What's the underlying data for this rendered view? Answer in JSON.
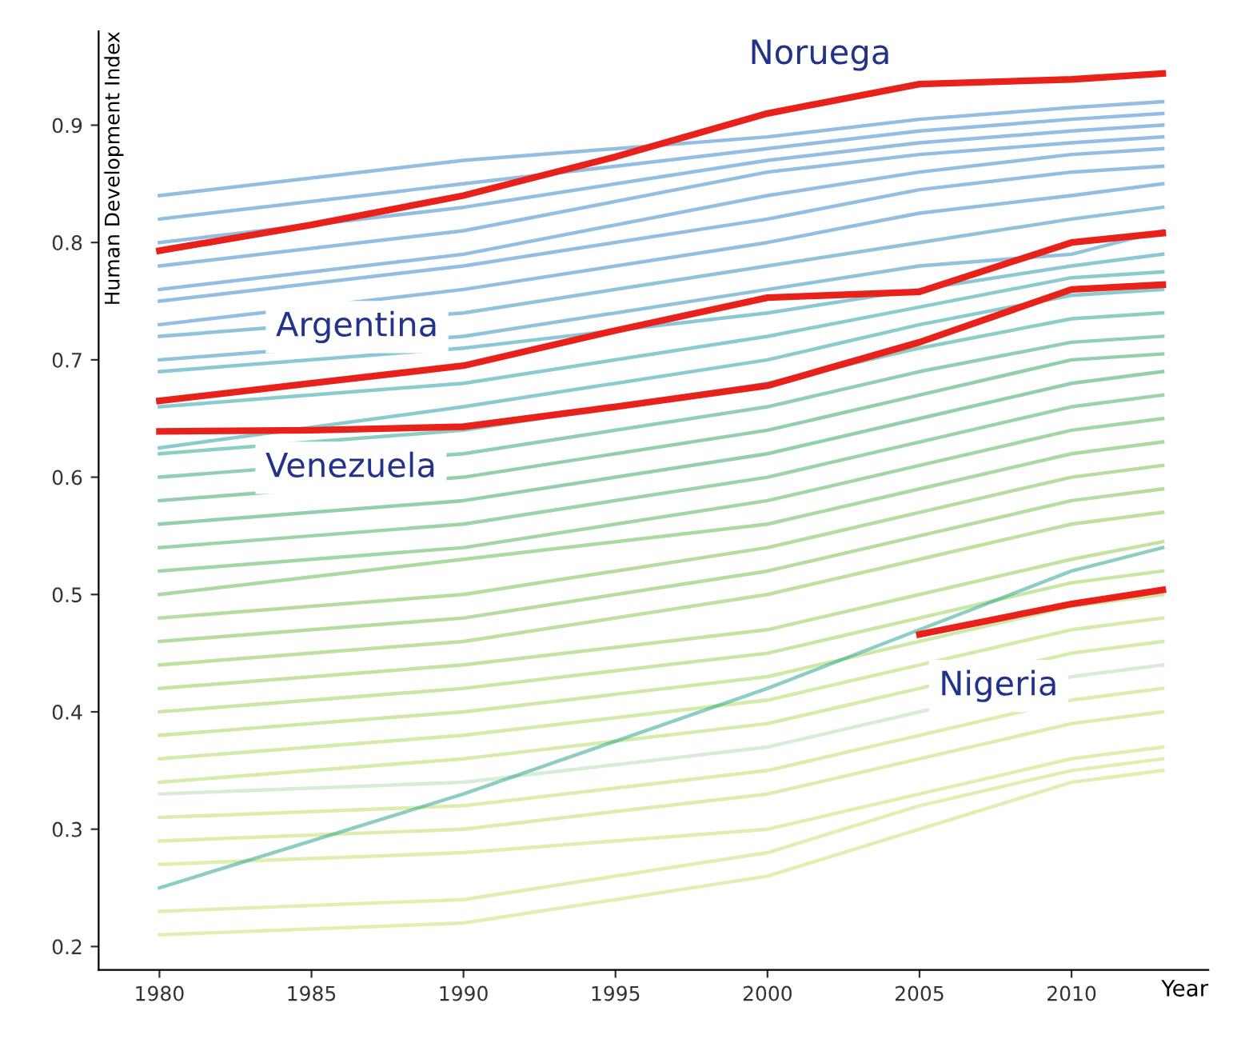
{
  "chart_data": {
    "type": "line",
    "xlabel": "Year",
    "ylabel": "Human Development Index",
    "xlim": [
      1978,
      2014.5
    ],
    "ylim": [
      0.18,
      0.98
    ],
    "xticks": [
      1980,
      1985,
      1990,
      1995,
      2000,
      2005,
      2010
    ],
    "yticks": [
      0.2,
      0.3,
      0.4,
      0.5,
      0.6,
      0.7,
      0.8,
      0.9
    ],
    "grid": false,
    "legend": false,
    "marker": "none",
    "line_style": "solid",
    "x": [
      1980,
      1990,
      2000,
      2005,
      2010,
      2013
    ],
    "series": [
      {
        "color": "#3a87c8",
        "values": [
          0.84,
          0.87,
          0.89,
          0.905,
          0.915,
          0.92
        ]
      },
      {
        "color": "#3a87c8",
        "values": [
          0.82,
          0.85,
          0.88,
          0.895,
          0.905,
          0.91
        ]
      },
      {
        "color": "#3a87c8",
        "values": [
          0.8,
          0.83,
          0.87,
          0.885,
          0.895,
          0.9
        ]
      },
      {
        "color": "#3a87c8",
        "values": [
          0.78,
          0.81,
          0.86,
          0.875,
          0.885,
          0.89
        ]
      },
      {
        "color": "#3a87c8",
        "values": [
          0.76,
          0.79,
          0.84,
          0.86,
          0.875,
          0.88
        ]
      },
      {
        "color": "#3a87c8",
        "values": [
          0.75,
          0.78,
          0.82,
          0.845,
          0.86,
          0.865
        ]
      },
      {
        "color": "#3a87c8",
        "values": [
          0.73,
          0.76,
          0.8,
          0.825,
          0.84,
          0.85
        ]
      },
      {
        "color": "#3590c0",
        "values": [
          0.72,
          0.74,
          0.78,
          0.8,
          0.82,
          0.83
        ]
      },
      {
        "color": "#3590c0",
        "values": [
          0.7,
          0.72,
          0.76,
          0.78,
          0.79,
          0.81
        ]
      },
      {
        "color": "#2c9ab0",
        "values": [
          0.69,
          0.71,
          0.74,
          0.76,
          0.78,
          0.79
        ]
      },
      {
        "color": "#2aa0a8",
        "values": [
          0.66,
          0.68,
          0.72,
          0.745,
          0.77,
          0.775
        ]
      },
      {
        "color": "#2aa0a8",
        "values": [
          0.625,
          0.66,
          0.7,
          0.73,
          0.755,
          0.76
        ]
      },
      {
        "color": "#2ea690",
        "values": [
          0.62,
          0.64,
          0.68,
          0.71,
          0.735,
          0.74
        ]
      },
      {
        "color": "#34a878",
        "values": [
          0.6,
          0.62,
          0.66,
          0.69,
          0.715,
          0.72
        ]
      },
      {
        "color": "#3aa86a",
        "values": [
          0.58,
          0.6,
          0.64,
          0.67,
          0.7,
          0.705
        ]
      },
      {
        "color": "#3aa86a",
        "values": [
          0.56,
          0.58,
          0.62,
          0.65,
          0.68,
          0.69
        ]
      },
      {
        "color": "#4aae62",
        "values": [
          0.54,
          0.56,
          0.6,
          0.63,
          0.66,
          0.67
        ]
      },
      {
        "color": "#55b45c",
        "values": [
          0.52,
          0.54,
          0.58,
          0.61,
          0.64,
          0.65
        ]
      },
      {
        "color": "#66ba56",
        "values": [
          0.5,
          0.53,
          0.56,
          0.59,
          0.62,
          0.63
        ]
      },
      {
        "color": "#7cc050",
        "values": [
          0.48,
          0.5,
          0.54,
          0.57,
          0.6,
          0.61
        ]
      },
      {
        "color": "#7cc050",
        "values": [
          0.46,
          0.48,
          0.52,
          0.55,
          0.58,
          0.59
        ]
      },
      {
        "color": "#88c652",
        "values": [
          0.44,
          0.46,
          0.5,
          0.53,
          0.56,
          0.57
        ]
      },
      {
        "color": "#94cc56",
        "values": [
          0.42,
          0.44,
          0.47,
          0.5,
          0.53,
          0.545
        ]
      },
      {
        "color": "#9ed25a",
        "values": [
          0.4,
          0.42,
          0.45,
          0.48,
          0.51,
          0.52
        ]
      },
      {
        "color": "#a8d65e",
        "values": [
          0.38,
          0.4,
          0.43,
          0.46,
          0.49,
          0.5
        ]
      },
      {
        "color": "#b0da62",
        "values": [
          0.36,
          0.38,
          0.41,
          0.44,
          0.47,
          0.48
        ]
      },
      {
        "color": "#b5dc66",
        "values": [
          0.34,
          0.36,
          0.39,
          0.42,
          0.45,
          0.46
        ]
      },
      {
        "color": "#baddb6",
        "values": [
          0.33,
          0.34,
          0.37,
          0.4,
          0.43,
          0.44
        ]
      },
      {
        "color": "#c0df6a",
        "values": [
          0.31,
          0.32,
          0.35,
          0.38,
          0.41,
          0.42
        ]
      },
      {
        "color": "#c0df6a",
        "values": [
          0.29,
          0.3,
          0.33,
          0.36,
          0.39,
          0.4
        ]
      },
      {
        "color": "#c4e16e",
        "values": [
          0.27,
          0.28,
          0.3,
          0.33,
          0.36,
          0.37
        ]
      },
      {
        "color": "#2ea690",
        "values": [
          0.25,
          0.33,
          0.42,
          0.47,
          0.52,
          0.54
        ]
      },
      {
        "color": "#c8e372",
        "values": [
          0.21,
          0.22,
          0.26,
          0.3,
          0.34,
          0.35
        ]
      },
      {
        "color": "#c8e372",
        "values": [
          0.23,
          0.24,
          0.28,
          0.32,
          0.35,
          0.36
        ]
      },
      {
        "color": "#e8211b",
        "x": [
          1980,
          1985,
          1990,
          1995,
          2000,
          2005,
          2010,
          2013
        ],
        "values": [
          0.793,
          0.815,
          0.84,
          0.873,
          0.91,
          0.935,
          0.939,
          0.944
        ]
      },
      {
        "color": "#e8211b",
        "x": [
          1980,
          1985,
          1990,
          1995,
          2000,
          2005,
          2010,
          2013
        ],
        "values": [
          0.665,
          0.68,
          0.695,
          0.725,
          0.753,
          0.758,
          0.8,
          0.808
        ]
      },
      {
        "color": "#e8211b",
        "x": [
          1980,
          1985,
          1990,
          1995,
          2000,
          2005,
          2010,
          2013
        ],
        "values": [
          0.639,
          0.64,
          0.643,
          0.66,
          0.678,
          0.715,
          0.76,
          0.764
        ]
      },
      {
        "color": "#e8211b",
        "x": [
          2005,
          2010,
          2013
        ],
        "values": [
          0.466,
          0.492,
          0.504
        ]
      }
    ],
    "annotations": [
      "Noruega",
      {
        "text": "Argentina",
        "x": 1986.5,
        "y": 0.728
      },
      {
        "text": "Venezuela",
        "x": 1986.3,
        "y": 0.608
      },
      {
        "text": "Nigeria",
        "x": 2007.6,
        "y": 0.422
      }
    ]
  }
}
